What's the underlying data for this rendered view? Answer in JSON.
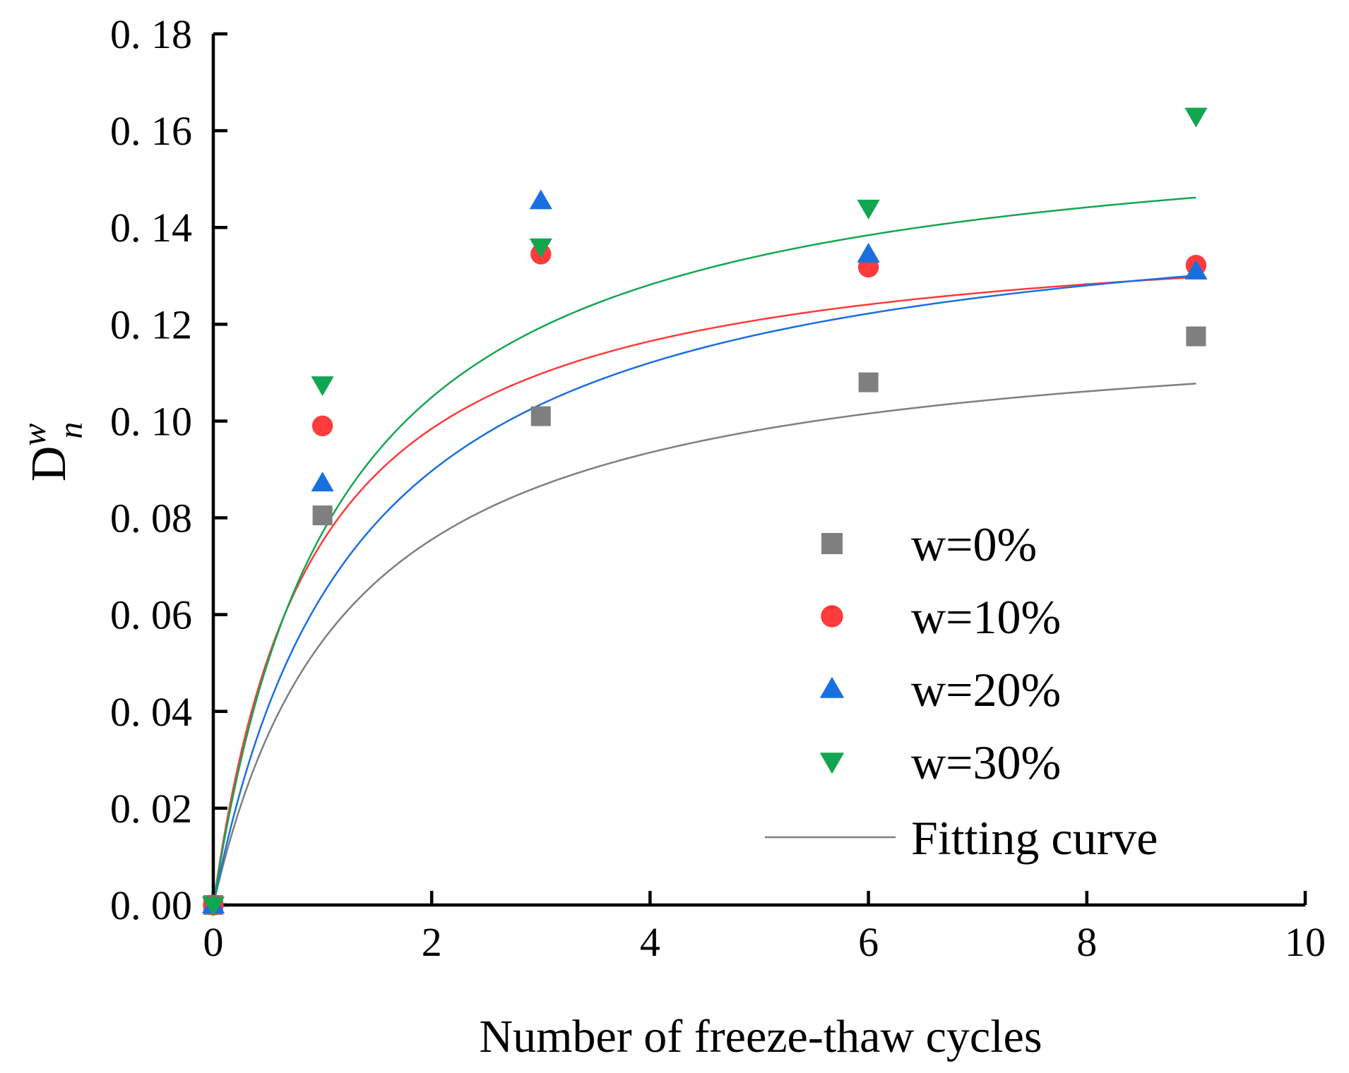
{
  "chart_data": {
    "type": "scatter",
    "title": "",
    "xlabel": "Number of freeze-thaw cycles",
    "ylabel": {
      "base": "D",
      "superscript": "w",
      "subscript": "n"
    },
    "xlim": [
      0,
      10
    ],
    "ylim": [
      0,
      0.18
    ],
    "x_ticks": [
      0,
      2,
      4,
      6,
      8,
      10
    ],
    "x_tick_labels": [
      "0",
      "2",
      "4",
      "6",
      "8",
      "10"
    ],
    "y_ticks": [
      0,
      0.02,
      0.04,
      0.06,
      0.08,
      0.1,
      0.12,
      0.14,
      0.16,
      0.18
    ],
    "y_tick_labels": [
      "0. 00",
      "0. 02",
      "0. 04",
      "0. 06",
      "0. 08",
      "0. 10",
      "0. 12",
      "0. 14",
      "0. 16",
      "0. 18"
    ],
    "grid": false,
    "legend_position": "bottom-right",
    "series": [
      {
        "name": "w=0%",
        "marker": "square",
        "color": "#7f7f7f",
        "x": [
          0,
          1,
          3,
          6,
          9
        ],
        "y": [
          0,
          0.0805,
          0.101,
          0.108,
          0.1175
        ],
        "fit": {
          "ymax": 0.1227,
          "k": 1.25
        }
      },
      {
        "name": "w=10%",
        "marker": "circle",
        "color": "#ff3b3b",
        "x": [
          0,
          1,
          3,
          6,
          9
        ],
        "y": [
          0,
          0.099,
          0.1345,
          0.1318,
          0.1322
        ],
        "fit": {
          "ymax": 0.1427,
          "k": 0.9
        }
      },
      {
        "name": "w=20%",
        "marker": "triangle-up",
        "color": "#1a6fe0",
        "x": [
          0,
          1,
          3,
          6,
          9
        ],
        "y": [
          0,
          0.0872,
          0.1455,
          0.1345,
          0.131
        ],
        "fit": {
          "ymax": 0.1493,
          "k": 1.33
        }
      },
      {
        "name": "w=30%",
        "marker": "triangle-down",
        "color": "#13a651",
        "x": [
          0,
          1,
          3,
          6,
          9
        ],
        "y": [
          0,
          0.1075,
          0.136,
          0.144,
          0.163
        ],
        "fit": {
          "ymax": 0.1647,
          "k": 1.14
        }
      }
    ],
    "fit_legend": {
      "name": "Fitting curve",
      "color": "#7f7f7f"
    }
  }
}
